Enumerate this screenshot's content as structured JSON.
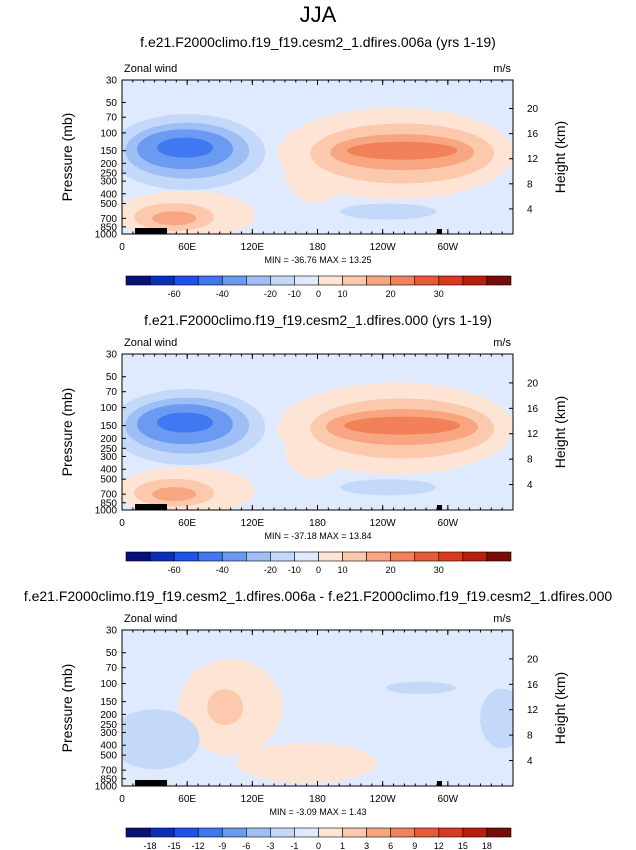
{
  "page": {
    "title": "JJA"
  },
  "colors": {
    "cb1": [
      "#08107a",
      "#0b2fb8",
      "#1f53e8",
      "#3f78f0",
      "#6a9af2",
      "#9ebef6",
      "#c4d8fa",
      "#dfeaff",
      "#fde4d4",
      "#fcc9ad",
      "#f8a682",
      "#f2815a",
      "#e75b36",
      "#d83a1f",
      "#b61f0f",
      "#7a0c05"
    ],
    "cb3": [
      "#08107a",
      "#0b2fb8",
      "#1f53e8",
      "#3f78f0",
      "#6a9af2",
      "#9ebef6",
      "#c4d8fa",
      "#dfeaff",
      "#fde4d4",
      "#fcc9ad",
      "#f8a682",
      "#f2815a",
      "#e75b36",
      "#d83a1f",
      "#b61f0f",
      "#7a0c05"
    ]
  },
  "panels": [
    {
      "title": "f.e21.F2000climo.f19_f19.cesm2_1.dfires.006a (yrs 1-19)",
      "left_label": "Zonal wind",
      "right_label": "m/s",
      "stats": "MIN = -36.76  MAX = 13.25",
      "colorbar_labels": [
        "-60",
        "-40",
        "-20",
        "-10",
        "0",
        "10",
        "20",
        "30"
      ]
    },
    {
      "title": "f.e21.F2000climo.f19_f19.cesm2_1.dfires.000 (yrs 1-19)",
      "left_label": "Zonal wind",
      "right_label": "m/s",
      "stats": "MIN = -37.18  MAX = 13.84",
      "colorbar_labels": [
        "-60",
        "-40",
        "-20",
        "-10",
        "0",
        "10",
        "20",
        "30"
      ]
    },
    {
      "title": "f.e21.F2000climo.f19_f19.cesm2_1.dfires.006a - f.e21.F2000climo.f19_f19.cesm2_1.dfires.000",
      "left_label": "Zonal wind",
      "right_label": "m/s",
      "stats": "MIN = -3.09  MAX = 1.43",
      "colorbar_labels": [
        "-18",
        "-15",
        "-12",
        "-9",
        "-6",
        "-3",
        "-1",
        "0",
        "1",
        "3",
        "6",
        "9",
        "12",
        "15",
        "18"
      ]
    }
  ],
  "chart_data": [
    {
      "type": "heatmap",
      "title": "f.e21.F2000climo.f19_f19.cesm2_1.dfires.006a (yrs 1-19)",
      "variable": "Zonal wind",
      "units": "m/s",
      "xlabel": "",
      "ylabel": "Pressure (mb)",
      "y2label": "Height (km)",
      "x_ticks": [
        "0",
        "60E",
        "120E",
        "180",
        "120W",
        "60W"
      ],
      "y_ticks": [
        "30",
        "50",
        "70",
        "100",
        "150",
        "200",
        "250",
        "300",
        "400",
        "500",
        "700",
        "850",
        "1000"
      ],
      "y2_ticks": [
        "4",
        "8",
        "12",
        "16",
        "20"
      ],
      "ylim": [
        1000,
        30
      ],
      "y_scale": "log",
      "min": -36.76,
      "max": 13.25,
      "colorbar_levels": [
        -60,
        -40,
        -20,
        -10,
        0,
        10,
        20,
        30
      ],
      "features": [
        {
          "kind": "easterly jet core",
          "lon_range": [
            "30E",
            "90E"
          ],
          "pressure_mb": 150,
          "value": -36.76
        },
        {
          "kind": "westerly jet core",
          "lon_range": [
            "150W",
            "70W"
          ],
          "pressure_mb": 200,
          "value": 13.25
        }
      ]
    },
    {
      "type": "heatmap",
      "title": "f.e21.F2000climo.f19_f19.cesm2_1.dfires.000 (yrs 1-19)",
      "variable": "Zonal wind",
      "units": "m/s",
      "xlabel": "",
      "ylabel": "Pressure (mb)",
      "y2label": "Height (km)",
      "x_ticks": [
        "0",
        "60E",
        "120E",
        "180",
        "120W",
        "60W"
      ],
      "y_ticks": [
        "30",
        "50",
        "70",
        "100",
        "150",
        "200",
        "250",
        "300",
        "400",
        "500",
        "700",
        "850",
        "1000"
      ],
      "y2_ticks": [
        "4",
        "8",
        "12",
        "16",
        "20"
      ],
      "ylim": [
        1000,
        30
      ],
      "y_scale": "log",
      "min": -37.18,
      "max": 13.84,
      "colorbar_levels": [
        -60,
        -40,
        -20,
        -10,
        0,
        10,
        20,
        30
      ],
      "features": [
        {
          "kind": "easterly jet core",
          "lon_range": [
            "30E",
            "90E"
          ],
          "pressure_mb": 150,
          "value": -37.18
        },
        {
          "kind": "westerly jet core",
          "lon_range": [
            "150W",
            "70W"
          ],
          "pressure_mb": 200,
          "value": 13.84
        }
      ]
    },
    {
      "type": "heatmap",
      "title": "f.e21.F2000climo.f19_f19.cesm2_1.dfires.006a - f.e21.F2000climo.f19_f19.cesm2_1.dfires.000",
      "variable": "Zonal wind",
      "units": "m/s",
      "xlabel": "",
      "ylabel": "Pressure (mb)",
      "y2label": "Height (km)",
      "x_ticks": [
        "0",
        "60E",
        "120E",
        "180",
        "120W",
        "60W"
      ],
      "y_ticks": [
        "30",
        "50",
        "70",
        "100",
        "150",
        "200",
        "250",
        "300",
        "400",
        "500",
        "700",
        "850",
        "1000"
      ],
      "y2_ticks": [
        "4",
        "8",
        "12",
        "16",
        "20"
      ],
      "ylim": [
        1000,
        30
      ],
      "y_scale": "log",
      "min": -3.09,
      "max": 1.43,
      "colorbar_levels": [
        -18,
        -15,
        -12,
        -9,
        -6,
        -3,
        -1,
        0,
        1,
        3,
        6,
        9,
        12,
        15,
        18
      ]
    }
  ]
}
